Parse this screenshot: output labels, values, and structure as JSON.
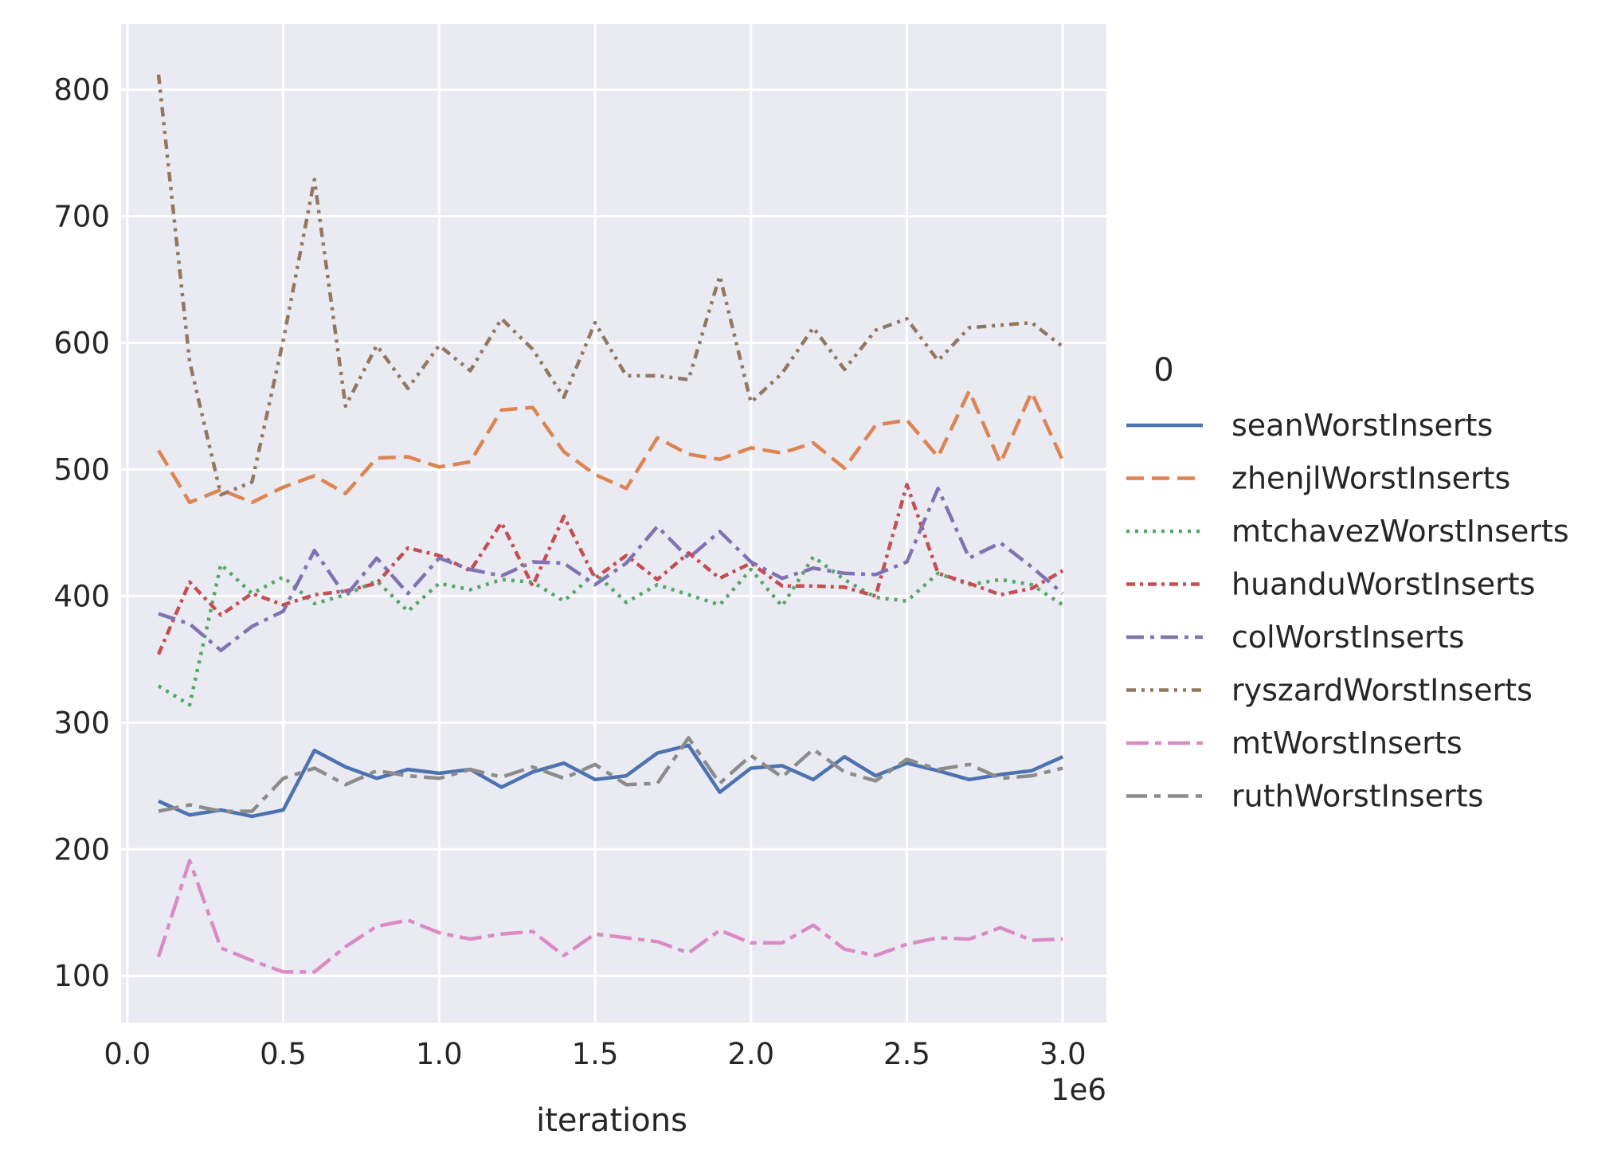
{
  "chart_data": {
    "type": "line",
    "title": "",
    "xlabel": "iterations",
    "ylabel": "",
    "x_offset_label": "1e6",
    "legend_title": "0",
    "legend_position": "right",
    "grid": true,
    "xlim": [
      -0.02,
      3.14
    ],
    "ylim": [
      63,
      852
    ],
    "x_ticks": [
      0.0,
      0.5,
      1.0,
      1.5,
      2.0,
      2.5,
      3.0
    ],
    "x_tick_labels": [
      "0.0",
      "0.5",
      "1.0",
      "1.5",
      "2.0",
      "2.5",
      "3.0"
    ],
    "y_ticks": [
      100,
      200,
      300,
      400,
      500,
      600,
      700,
      800
    ],
    "y_tick_labels": [
      "100",
      "200",
      "300",
      "400",
      "500",
      "600",
      "700",
      "800"
    ],
    "x": [
      0.1,
      0.2,
      0.3,
      0.4,
      0.5,
      0.6,
      0.7,
      0.8,
      0.9,
      1.0,
      1.1,
      1.2,
      1.3,
      1.4,
      1.5,
      1.6,
      1.7,
      1.8,
      1.9,
      2.0,
      2.1,
      2.2,
      2.3,
      2.4,
      2.5,
      2.6,
      2.7,
      2.8,
      2.9,
      3.0
    ],
    "series": [
      {
        "name": "seanWorstInserts",
        "color": "#4c72b0",
        "dash": "solid",
        "values": [
          238,
          227,
          231,
          226,
          231,
          278,
          265,
          256,
          263,
          260,
          263,
          249,
          261,
          268,
          255,
          258,
          276,
          282,
          245,
          264,
          266,
          255,
          273,
          258,
          268,
          262,
          255,
          259,
          262,
          273
        ]
      },
      {
        "name": "zhenjlWorstInserts",
        "color": "#dd8452",
        "dash": "dashed",
        "values": [
          515,
          474,
          484,
          474,
          486,
          495,
          481,
          509,
          510,
          502,
          506,
          547,
          549,
          514,
          496,
          485,
          525,
          512,
          508,
          517,
          513,
          521,
          501,
          535,
          539,
          510,
          562,
          505,
          561,
          507
        ]
      },
      {
        "name": "mtchavezWorstInserts",
        "color": "#55a868",
        "dash": "dotted",
        "values": [
          329,
          314,
          425,
          402,
          415,
          394,
          401,
          412,
          388,
          410,
          405,
          413,
          411,
          396,
          418,
          395,
          409,
          401,
          393,
          421,
          392,
          431,
          413,
          399,
          396,
          418,
          409,
          413,
          409,
          393
        ]
      },
      {
        "name": "huanduWorstInserts",
        "color": "#c44e52",
        "dash": "dashdot-fine",
        "values": [
          354,
          411,
          385,
          402,
          393,
          401,
          404,
          410,
          438,
          432,
          420,
          458,
          408,
          463,
          414,
          432,
          413,
          434,
          414,
          426,
          408,
          408,
          407,
          400,
          488,
          418,
          410,
          401,
          406,
          420
        ]
      },
      {
        "name": "colWorstInserts",
        "color": "#8172b3",
        "dash": "dashdot",
        "values": [
          386,
          378,
          357,
          376,
          388,
          436,
          400,
          430,
          402,
          430,
          421,
          416,
          427,
          426,
          409,
          426,
          455,
          430,
          451,
          427,
          414,
          422,
          418,
          417,
          427,
          485,
          430,
          442,
          423,
          402
        ]
      },
      {
        "name": "ryszardWorstInserts",
        "color": "#937860",
        "dash": "dashdotdot",
        "values": [
          812,
          585,
          480,
          490,
          602,
          729,
          550,
          598,
          564,
          598,
          578,
          619,
          595,
          557,
          616,
          574,
          574,
          571,
          653,
          553,
          576,
          612,
          579,
          610,
          619,
          586,
          612,
          614,
          616,
          597
        ]
      },
      {
        "name": "mtWorstInserts",
        "color": "#da8bc3",
        "dash": "longdashdot",
        "values": [
          115,
          191,
          122,
          112,
          103,
          103,
          123,
          139,
          144,
          134,
          129,
          133,
          135,
          116,
          133,
          130,
          127,
          118,
          136,
          126,
          126,
          140,
          121,
          116,
          125,
          130,
          129,
          138,
          128,
          129
        ]
      },
      {
        "name": "ruthWorstInserts",
        "color": "#8c8c8c",
        "dash": "longdashdot2",
        "values": [
          230,
          235,
          230,
          230,
          256,
          264,
          251,
          262,
          258,
          256,
          263,
          257,
          265,
          256,
          267,
          251,
          252,
          288,
          252,
          274,
          257,
          279,
          261,
          254,
          271,
          263,
          267,
          256,
          258,
          264
        ]
      }
    ]
  }
}
